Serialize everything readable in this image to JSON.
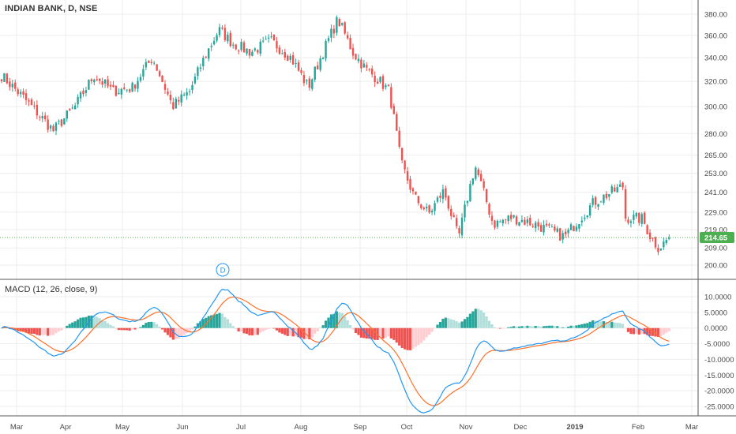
{
  "header": {
    "title": "INDIAN BANK, D, NSE",
    "macd_title": "MACD (12, 26, close, 9)"
  },
  "price_badge": "214.65",
  "event_marker": "D",
  "colors": {
    "up": "#26a69a",
    "down": "#ef5350",
    "up_light": "#b2dfdb",
    "down_light": "#ffcdd2",
    "macd_line": "#2196f3",
    "signal_line": "#ff7029",
    "price_line": "#4caf50",
    "grid": "#eeeeee"
  },
  "chart_data": [
    {
      "type": "candlestick",
      "title": "INDIAN BANK, D, NSE",
      "x_ticks": [
        "Mar",
        "Apr",
        "May",
        "Jun",
        "Jul",
        "Aug",
        "Sep",
        "Oct",
        "Nov",
        "Dec",
        "2019",
        "Feb",
        "Mar"
      ],
      "y_ticks": [
        "380.00",
        "360.00",
        "340.00",
        "320.00",
        "300.00",
        "280.00",
        "265.00",
        "253.00",
        "241.00",
        "229.00",
        "219.00",
        "209.00",
        "200.00"
      ],
      "y_scale": "log",
      "last_price": 214.65,
      "anchors": [
        [
          "Mar",
          325
        ],
        [
          "Mar",
          282
        ],
        [
          "Apr",
          300
        ],
        [
          "Apr",
          325
        ],
        [
          "Apr",
          312
        ],
        [
          "May",
          315
        ],
        [
          "May",
          340
        ],
        [
          "May",
          300
        ],
        [
          "Jun",
          312
        ],
        [
          "Jun",
          340
        ],
        [
          "Jun",
          365
        ],
        [
          "Jun",
          352
        ],
        [
          "Jul",
          345
        ],
        [
          "Jul",
          355
        ],
        [
          "Jul",
          340
        ],
        [
          "Aug",
          315
        ],
        [
          "Aug",
          345
        ],
        [
          "Aug",
          375
        ],
        [
          "Aug",
          345
        ],
        [
          "Sep",
          330
        ],
        [
          "Sep",
          322
        ],
        [
          "Sep",
          312
        ],
        [
          "Sep",
          260
        ],
        [
          "Oct",
          238
        ],
        [
          "Oct",
          228
        ],
        [
          "Oct",
          242
        ],
        [
          "Oct",
          214
        ],
        [
          "Nov",
          258
        ],
        [
          "Nov",
          222
        ],
        [
          "Nov",
          226
        ],
        [
          "Dec",
          222
        ],
        [
          "Dec",
          215
        ],
        [
          "Dec",
          235
        ],
        [
          "Dec",
          245
        ],
        [
          "2019",
          252
        ],
        [
          "2019",
          252
        ],
        [
          "2019",
          252
        ],
        [
          "Feb",
          225
        ],
        [
          "Feb",
          215
        ],
        [
          "Feb",
          209
        ],
        [
          "Feb",
          214.65
        ]
      ]
    },
    {
      "type": "macd",
      "title": "MACD (12, 26, close, 9)",
      "params": [
        12,
        26,
        9
      ],
      "y_ticks": [
        "10.0000",
        "5.0000",
        "0.0000",
        "-5.0000",
        "-10.0000",
        "-15.0000",
        "-20.0000",
        "-25.0000"
      ],
      "ylim": [
        -27.5,
        12.5
      ],
      "series": [
        {
          "name": "MACD"
        },
        {
          "name": "Signal"
        },
        {
          "name": "Histogram"
        }
      ]
    }
  ]
}
